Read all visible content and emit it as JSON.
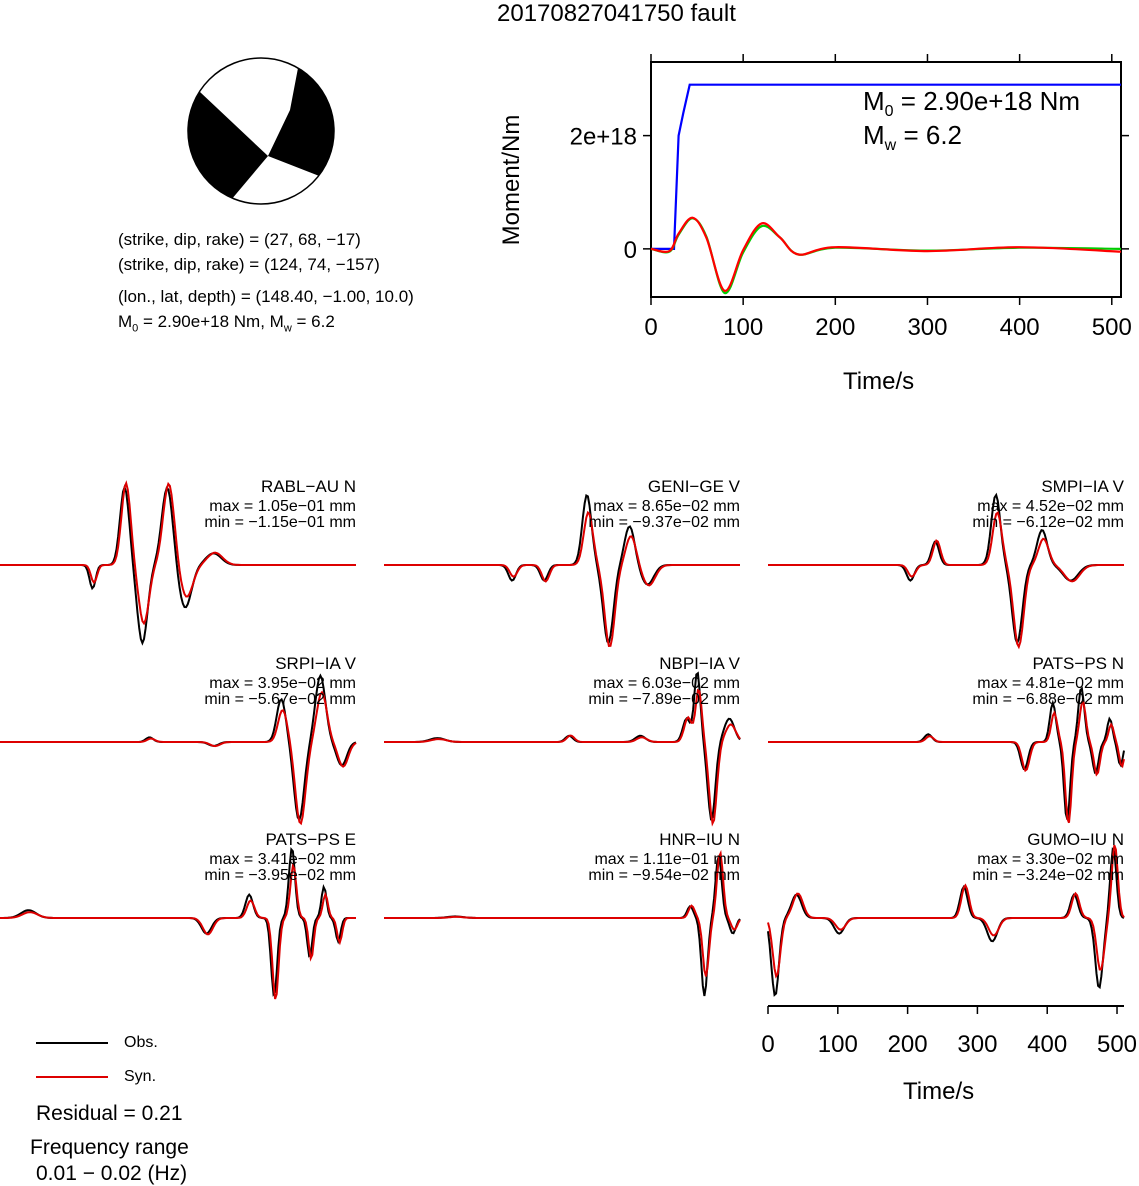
{
  "title": "20170827041750 fault",
  "mechanism": {
    "plane1": "(strike, dip, rake) = (27, 68, −17)",
    "plane2": "(strike, dip, rake) = (124, 74, −157)",
    "location": "(lon., lat, depth) = (148.40, −1.00, 10.0)",
    "moment_prefix": "M",
    "moment_sub": "0",
    "moment_mid": " = 2.90e+18 Nm, M",
    "moment_sub2": "w",
    "moment_end": " = 6.2"
  },
  "moment_plot": {
    "ylabel": "Moment/Nm",
    "xlabel": "Time/s",
    "m0_label": "M",
    "m0_sub": "0",
    "m0_value": " = 2.90e+18 Nm",
    "mw_label": "M",
    "mw_sub": "w",
    "mw_value": " = 6.2",
    "xticks": [
      "0",
      "100",
      "200",
      "300",
      "400",
      "500"
    ],
    "yticks": [
      "0",
      "2e+18"
    ]
  },
  "chart_data": [
    {
      "type": "line",
      "title": "",
      "xlabel": "Time/s",
      "ylabel": "Moment/Nm",
      "xlim": [
        0,
        510
      ],
      "ylim": [
        -8.5e+17,
        3.3e+18
      ],
      "series": [
        {
          "color": "#0000ff",
          "x": [
            0,
            25,
            30,
            35,
            42,
            510
          ],
          "y": [
            0,
            0,
            2e+18,
            2.4e+18,
            2.9e+18,
            2.9e+18
          ]
        },
        {
          "color": "#00cc00",
          "x": [
            0,
            20,
            30,
            45,
            60,
            80,
            100,
            120,
            140,
            160,
            200,
            300,
            400,
            510
          ],
          "y": [
            0,
            -5e+16,
            2.5e+17,
            5.4e+17,
            2.2e+17,
            -7.8e+17,
            -6e+16,
            4e+17,
            2e+17,
            -1e+17,
            2e+16,
            -3e+16,
            2e+16,
            0
          ]
        },
        {
          "color": "#ff0000",
          "x": [
            0,
            20,
            30,
            45,
            60,
            80,
            100,
            120,
            140,
            160,
            200,
            300,
            400,
            510
          ],
          "y": [
            0,
            -4e+16,
            2.7e+17,
            5.5e+17,
            2e+17,
            -7.4e+17,
            -2e+16,
            4.5e+17,
            2e+17,
            -1e+17,
            3e+16,
            -4e+16,
            3e+16,
            -5e+16
          ]
        }
      ]
    },
    {
      "type": "line",
      "title": "",
      "xlabel": "Time/s",
      "xlim": [
        0,
        510
      ],
      "ylim": [
        -1,
        1
      ],
      "series": [
        {
          "name": "Obs.",
          "color": "#000000"
        },
        {
          "name": "Syn.",
          "color": "#dd0000"
        }
      ]
    }
  ],
  "stations": [
    {
      "name": "RABL−AU N",
      "max": "max = 1.05e−01 mm",
      "min": "min = −1.15e−01 mm"
    },
    {
      "name": "GENI−GE V",
      "max": "max = 8.65e−02 mm",
      "min": "min = −9.37e−02 mm"
    },
    {
      "name": "SMPI−IA V",
      "max": "max = 4.52e−02 mm",
      "min": "min = −6.12e−02 mm"
    },
    {
      "name": "SRPI−IA V",
      "max": "max = 3.95e−02 mm",
      "min": "min = −5.67e−02 mm"
    },
    {
      "name": "NBPI−IA V",
      "max": "max = 6.03e−02 mm",
      "min": "min = −7.89e−02 mm"
    },
    {
      "name": "PATS−PS N",
      "max": "max = 4.81e−02 mm",
      "min": "min = −6.88e−02 mm"
    },
    {
      "name": "PATS−PS E",
      "max": "max = 3.41e−02 mm",
      "min": "min = −3.95e−02 mm"
    },
    {
      "name": "HNR−IU N",
      "max": "max = 1.11e−01 mm",
      "min": "min = −9.54e−02 mm"
    },
    {
      "name": "GUMO−IU N",
      "max": "max = 3.30e−02 mm",
      "min": "min = −3.24e−02 mm"
    }
  ],
  "legend": {
    "obs": "Obs.",
    "syn": "Syn.",
    "residual": "Residual = 0.21",
    "freq_title": "Frequency range",
    "freq_value": "0.01 − 0.02 (Hz)"
  },
  "bottom_axis": {
    "xlabel": "Time/s",
    "xticks": [
      "0",
      "100",
      "200",
      "300",
      "400",
      "500"
    ]
  },
  "colors": {
    "obs": "#000000",
    "syn": "#dd0000",
    "moment": "#0000ff",
    "green": "#00cc00",
    "red": "#ff0000"
  }
}
